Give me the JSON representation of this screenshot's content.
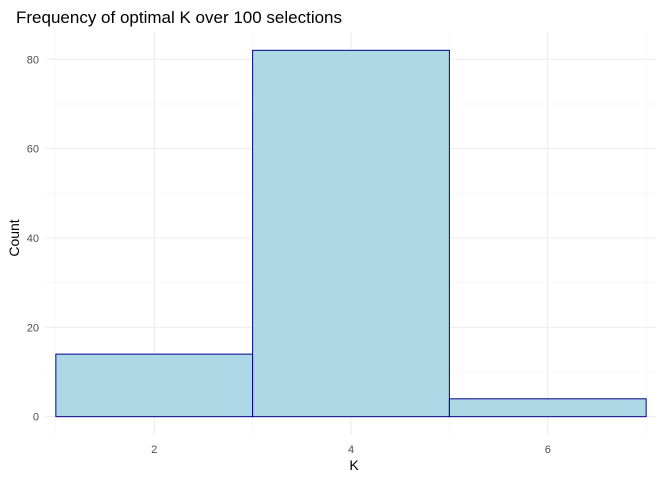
{
  "chart_data": {
    "type": "bar",
    "title": "Frequency of optimal K over 100 selections",
    "xlabel": "K",
    "ylabel": "Count",
    "bins": [
      {
        "x_start": 1,
        "x_end": 3,
        "count": 14
      },
      {
        "x_start": 3,
        "x_end": 5,
        "count": 82
      },
      {
        "x_start": 5,
        "x_end": 7,
        "count": 4
      }
    ],
    "x_ticks": [
      2,
      4,
      6
    ],
    "y_ticks": [
      0,
      20,
      40,
      60,
      80
    ],
    "xlim": [
      0.9,
      7.1
    ],
    "ylim": [
      -4.1,
      86.1
    ],
    "grid": true,
    "legend": "none",
    "colors": {
      "bar_fill": "#add8e6",
      "bar_outline": "#00008b",
      "grid": "#ebebeb",
      "tick_text": "#4d4d4d"
    }
  }
}
